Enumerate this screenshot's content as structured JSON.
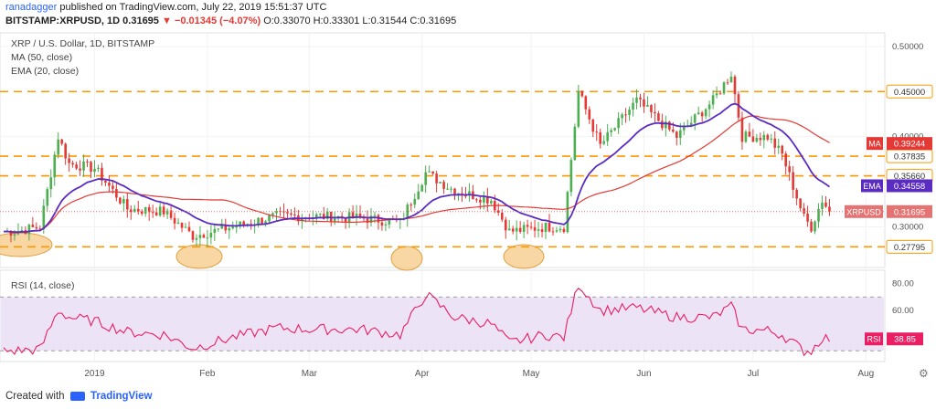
{
  "header": {
    "author": "ranadagger",
    "published": "published on TradingView.com, July 22, 2019 15:51:37 UTC",
    "symbol": "BITSTAMP:XRPUSD, 1D",
    "last": "0.31695",
    "change": "−0.01345 (−4.07%)",
    "ohlc": "O:0.33070 H:0.33301 L:0.31544 C:0.31695"
  },
  "legend": {
    "title": "XRP / U.S. Dollar, 1D, BITSTAMP",
    "ma": "MA (50, close)",
    "ema": "EMA (20, close)",
    "rsi": "RSI (14, close)"
  },
  "footer": {
    "created": "Created with",
    "brand": "TradingView"
  },
  "colors": {
    "up": "#4caf50",
    "down": "#e53935",
    "ma": "#e53935",
    "ema": "#5b2cc1",
    "levels": "#ff9800",
    "rsi": "#e91e63",
    "rsi_band": "#ede3f7",
    "last_price": "#e57373"
  },
  "chart_data": [
    {
      "type": "candlestick",
      "title": "XRP / U.S. Dollar, 1D, BITSTAMP",
      "ylim": [
        0.255,
        0.515
      ],
      "x_ticks": [
        "2019",
        "Feb",
        "Mar",
        "Apr",
        "May",
        "Jun",
        "Jul",
        "Aug"
      ],
      "y_ticks": [
        "0.50000",
        "0.40000",
        "0.30000"
      ],
      "horizontal_levels": [
        0.45,
        0.37835,
        0.3566,
        0.27795
      ],
      "level_labels": [
        "0.45000",
        "0.37835",
        "0.35660",
        "0.27795"
      ],
      "price_labels": [
        {
          "name": "MA",
          "value": "0.39244"
        },
        {
          "name": "EMA",
          "value": "0.34558"
        },
        {
          "name": "XRPUSD",
          "value": "0.31695"
        }
      ],
      "key_price_anchors": [
        [
          "2018-12-10",
          0.295
        ],
        [
          "2018-12-17",
          0.3
        ],
        [
          "2018-12-22",
          0.4
        ],
        [
          "2018-12-25",
          0.37
        ],
        [
          "2019-01-01",
          0.365
        ],
        [
          "2019-01-10",
          0.32
        ],
        [
          "2019-01-20",
          0.317
        ],
        [
          "2019-01-28",
          0.29
        ],
        [
          "2019-02-08",
          0.3
        ],
        [
          "2019-02-20",
          0.312
        ],
        [
          "2019-03-01",
          0.312
        ],
        [
          "2019-03-15",
          0.31
        ],
        [
          "2019-03-26",
          0.305
        ],
        [
          "2019-04-02",
          0.36
        ],
        [
          "2019-04-10",
          0.34
        ],
        [
          "2019-04-20",
          0.33
        ],
        [
          "2019-04-25",
          0.295
        ],
        [
          "2019-05-05",
          0.3
        ],
        [
          "2019-05-10",
          0.3
        ],
        [
          "2019-05-14",
          0.45
        ],
        [
          "2019-05-20",
          0.39
        ],
        [
          "2019-05-30",
          0.44
        ],
        [
          "2019-06-10",
          0.4
        ],
        [
          "2019-06-20",
          0.44
        ],
        [
          "2019-06-25",
          0.47
        ],
        [
          "2019-06-28",
          0.4
        ],
        [
          "2019-07-05",
          0.4
        ],
        [
          "2019-07-09",
          0.38
        ],
        [
          "2019-07-15",
          0.31
        ],
        [
          "2019-07-17",
          0.3
        ],
        [
          "2019-07-20",
          0.33
        ],
        [
          "2019-07-22",
          0.317
        ]
      ],
      "series": [
        {
          "name": "MA (50, close)"
        },
        {
          "name": "EMA (20, close)"
        }
      ]
    },
    {
      "type": "line",
      "title": "RSI (14, close)",
      "ylim": [
        22,
        90
      ],
      "y_ticks": [
        "80.00",
        "60.00"
      ],
      "band": [
        30,
        70
      ],
      "current_label": {
        "name": "RSI",
        "value": "38.85"
      },
      "rsi_anchors": [
        [
          "2018-12-10",
          30
        ],
        [
          "2018-12-17",
          31
        ],
        [
          "2018-12-22",
          60
        ],
        [
          "2018-12-25",
          55
        ],
        [
          "2019-01-01",
          52
        ],
        [
          "2019-01-10",
          44
        ],
        [
          "2019-01-20",
          42
        ],
        [
          "2019-01-28",
          32
        ],
        [
          "2019-02-08",
          40
        ],
        [
          "2019-02-20",
          47
        ],
        [
          "2019-03-01",
          46
        ],
        [
          "2019-03-15",
          46
        ],
        [
          "2019-03-26",
          42
        ],
        [
          "2019-04-02",
          72
        ],
        [
          "2019-04-10",
          55
        ],
        [
          "2019-04-20",
          50
        ],
        [
          "2019-04-25",
          36
        ],
        [
          "2019-05-05",
          42
        ],
        [
          "2019-05-10",
          40
        ],
        [
          "2019-05-14",
          80
        ],
        [
          "2019-05-20",
          60
        ],
        [
          "2019-05-30",
          62
        ],
        [
          "2019-06-10",
          55
        ],
        [
          "2019-06-20",
          55
        ],
        [
          "2019-06-25",
          63
        ],
        [
          "2019-06-28",
          46
        ],
        [
          "2019-07-05",
          45
        ],
        [
          "2019-07-09",
          42
        ],
        [
          "2019-07-15",
          30
        ],
        [
          "2019-07-17",
          30
        ],
        [
          "2019-07-20",
          40
        ],
        [
          "2019-07-22",
          38.85
        ]
      ]
    }
  ]
}
